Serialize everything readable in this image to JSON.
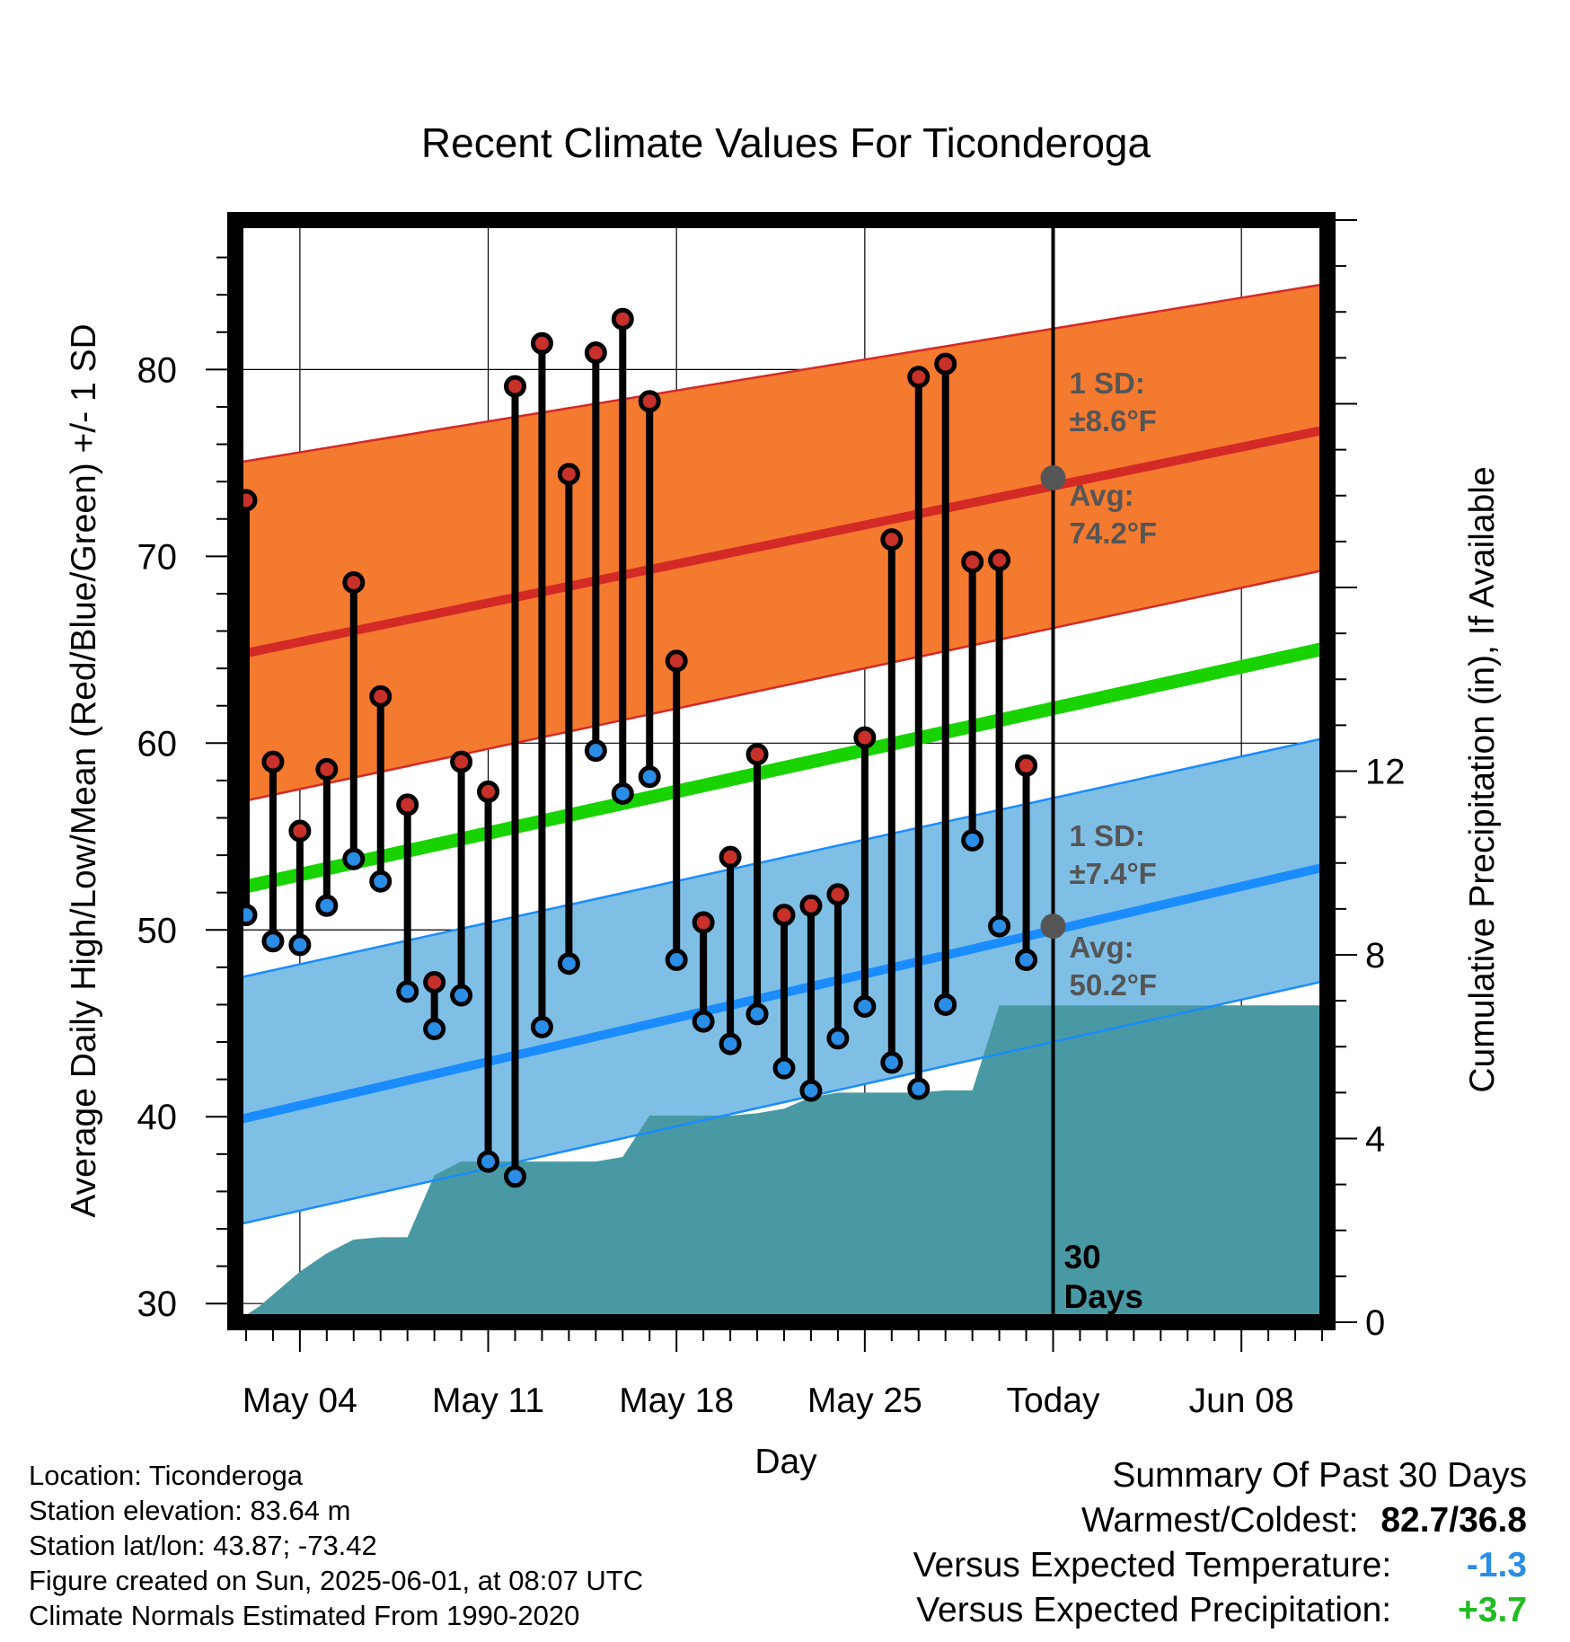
{
  "chart_data": {
    "type": "line",
    "title": "Recent Climate Values For Ticonderoga",
    "xlabel": "Day",
    "ylabel": "Average Daily High/Low/Mean (Red/Blue/Green) +/- 1 SD",
    "y2label": "Cumulative Precipitation (in), If Available",
    "ylim": [
      29,
      88
    ],
    "y2lim": [
      0,
      24
    ],
    "xlim": [
      -2.4,
      38.2
    ],
    "x_ticks": [
      {
        "x": 0,
        "label": "May 04"
      },
      {
        "x": 7,
        "label": "May 11"
      },
      {
        "x": 14,
        "label": "May 18"
      },
      {
        "x": 21,
        "label": "May 25"
      },
      {
        "x": 28,
        "label": "Today"
      },
      {
        "x": 35,
        "label": "Jun 08"
      }
    ],
    "y_ticks": [
      30,
      40,
      50,
      60,
      70,
      80
    ],
    "y2_ticks": [
      0,
      4,
      8,
      12
    ],
    "grid": true,
    "today_x": 28,
    "days_label": [
      "30",
      "Days"
    ],
    "normals": {
      "x_start": -2.4,
      "x_end": 38.2,
      "high_mean": [
        64.7,
        76.8
      ],
      "high_upper": [
        75.0,
        84.6
      ],
      "high_lower": [
        56.8,
        69.3
      ],
      "mean": [
        52.2,
        65.1
      ],
      "low_mean": [
        39.8,
        53.4
      ],
      "low_upper": [
        47.4,
        60.3
      ],
      "low_lower": [
        34.2,
        47.3
      ]
    },
    "annotations": {
      "high_sd_label": "1 SD:",
      "high_sd_value": "±8.6°F",
      "high_avg_label": "Avg:",
      "high_avg_value": "74.2°F",
      "high_avg_y": 74.2,
      "low_sd_label": "1 SD:",
      "low_sd_value": "±7.4°F",
      "low_avg_label": "Avg:",
      "low_avg_value": "50.2°F",
      "low_avg_y": 50.2
    },
    "daily": {
      "x": [
        -2,
        -1,
        0,
        1,
        2,
        3,
        4,
        5,
        6,
        7,
        8,
        9,
        10,
        11,
        12,
        13,
        14,
        15,
        16,
        17,
        18,
        19,
        20,
        21,
        22,
        23,
        24,
        25,
        26,
        27
      ],
      "high": [
        73.0,
        59.0,
        55.3,
        58.6,
        68.6,
        62.5,
        56.7,
        47.2,
        59.0,
        57.4,
        79.1,
        81.4,
        74.4,
        80.9,
        82.7,
        78.3,
        64.4,
        50.4,
        53.9,
        59.4,
        50.8,
        51.3,
        51.9,
        60.3,
        70.9,
        79.6,
        80.3,
        69.7,
        69.8,
        58.8
      ],
      "low": [
        50.8,
        49.4,
        49.2,
        51.3,
        53.8,
        52.6,
        46.7,
        44.7,
        46.5,
        37.6,
        36.8,
        44.8,
        48.2,
        59.6,
        57.3,
        58.2,
        48.4,
        45.1,
        43.9,
        45.5,
        42.6,
        41.4,
        44.2,
        45.9,
        42.9,
        41.5,
        46.0,
        54.8,
        50.2,
        48.4
      ]
    },
    "precip": {
      "x": [
        -2.4,
        -1.5,
        -1.0,
        0,
        1,
        2,
        3,
        4,
        5,
        6,
        7,
        8,
        9,
        10,
        11,
        12,
        13,
        14,
        15,
        16,
        17,
        18,
        19,
        20,
        21,
        22,
        23,
        24,
        25,
        26,
        27,
        28,
        38.2
      ],
      "y": [
        0,
        0.35,
        0.6,
        1.1,
        1.5,
        1.8,
        1.85,
        1.85,
        3.2,
        3.5,
        3.5,
        3.5,
        3.5,
        3.5,
        3.5,
        3.6,
        4.5,
        4.5,
        4.5,
        4.5,
        4.55,
        4.65,
        4.9,
        5.0,
        5.0,
        5.0,
        5.0,
        5.05,
        5.05,
        6.9,
        6.9,
        6.9,
        6.9
      ]
    },
    "colors": {
      "high_band": "#f47a2f",
      "high_line": "#d42a26",
      "mean_line": "#18d300",
      "low_band": "#7fbfe6",
      "low_line": "#1a8cff",
      "precip": "#4899a3",
      "high_dot": "#c8302a",
      "low_dot": "#2a8de6",
      "annotation_text": "#555555"
    }
  },
  "station": {
    "location": "Location: Ticonderoga",
    "elevation": "Station elevation: 83.64 m",
    "latlon": "Station lat/lon: 43.87; -73.42",
    "created": "Figure created on Sun, 2025-06-01, at 08:07 UTC",
    "normals_period": "Climate Normals Estimated From 1990-2020"
  },
  "summary": {
    "heading": "Summary Of Past 30 Days",
    "warm_cold_label": "Warmest/Coldest:",
    "warm_cold_value": "82.7/36.8",
    "temp_label": "Versus Expected Temperature:",
    "temp_value": "-1.3",
    "temp_color": "#2a8de6",
    "precip_label": "Versus Expected Precipitation:",
    "precip_value": "+3.7",
    "precip_color": "#22bb22"
  }
}
